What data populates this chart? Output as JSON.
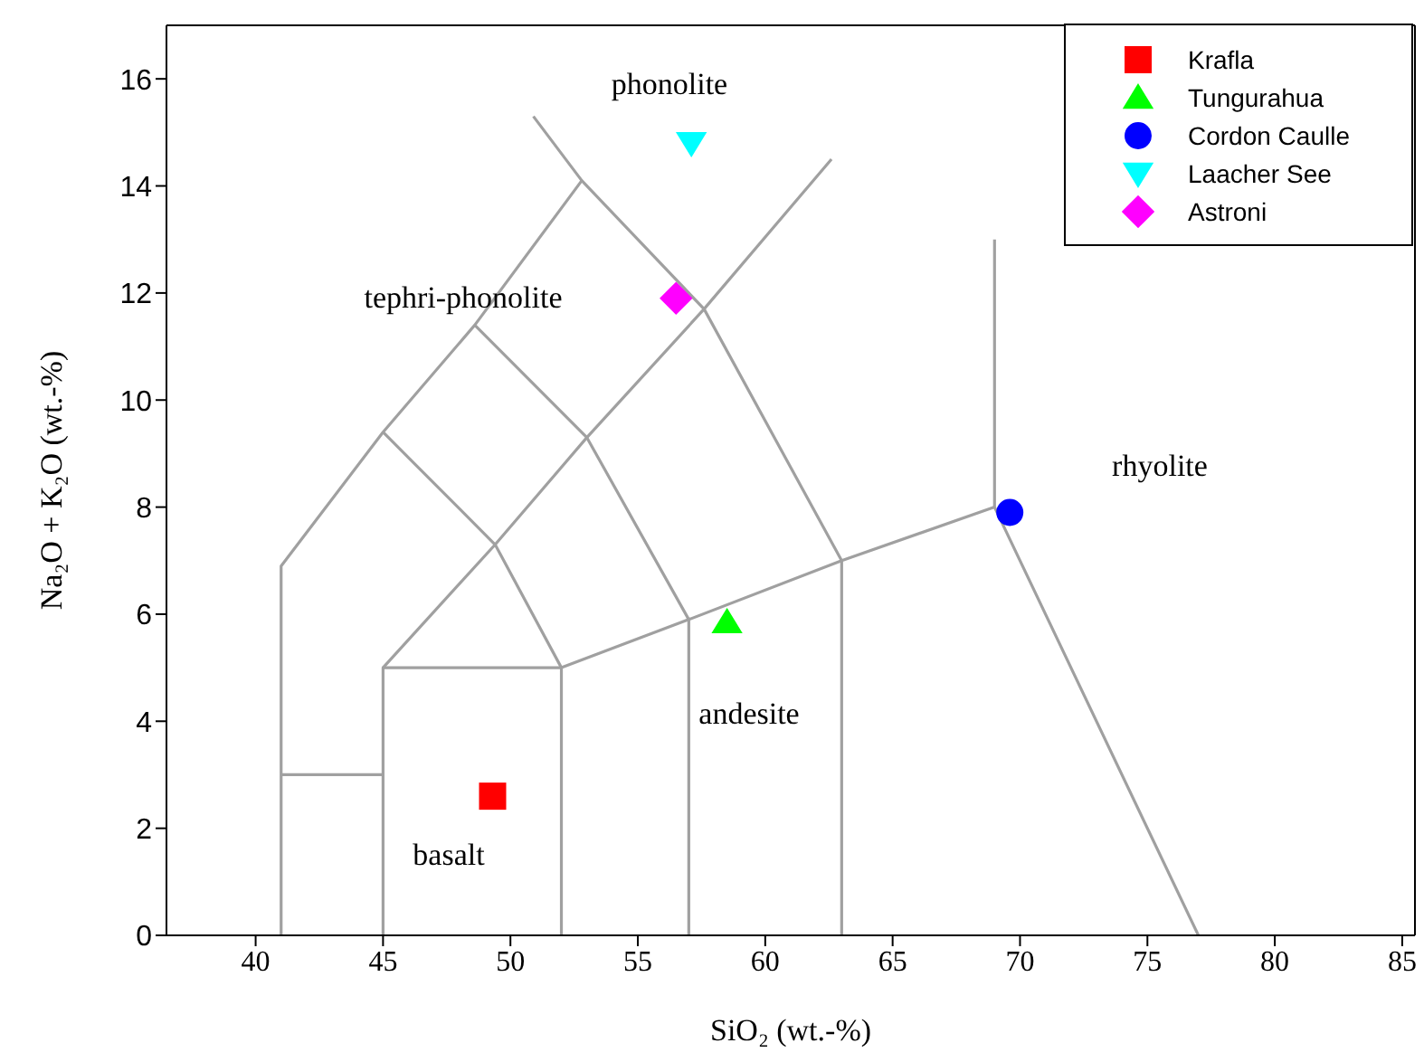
{
  "chart_data": {
    "type": "scatter",
    "xlabel": "SiO₂ (wt.-%)",
    "ylabel": "Na₂O + K₂O (wt.-%)",
    "xlim": [
      36.5,
      85.5
    ],
    "ylim": [
      0,
      17
    ],
    "xticks": [
      40,
      45,
      50,
      55,
      60,
      65,
      70,
      75,
      80,
      85
    ],
    "yticks": [
      0,
      2,
      4,
      6,
      8,
      10,
      12,
      14,
      16
    ],
    "legend": "top right",
    "series": [
      {
        "type": "line",
        "color": "#a0a0a0",
        "x": [
          41,
          41,
          45,
          48.6,
          52.8
        ],
        "values": [
          0,
          6.9,
          9.4,
          11.4,
          14.1
        ]
      },
      {
        "type": "line",
        "color": "#a0a0a0",
        "x": [
          41,
          45
        ],
        "values": [
          3,
          3
        ]
      },
      {
        "type": "line",
        "color": "#a0a0a0",
        "x": [
          45,
          45,
          52,
          52
        ],
        "values": [
          0,
          5,
          5,
          0
        ]
      },
      {
        "type": "line",
        "color": "#a0a0a0",
        "x": [
          45,
          49.4,
          53,
          57.6,
          62.6
        ],
        "values": [
          5,
          7.3,
          9.3,
          11.7,
          14.5
        ]
      },
      {
        "type": "line",
        "color": "#a0a0a0",
        "x": [
          45,
          49.4,
          52
        ],
        "values": [
          9.4,
          7.3,
          5
        ]
      },
      {
        "type": "line",
        "color": "#a0a0a0",
        "x": [
          48.6,
          53,
          57
        ],
        "values": [
          11.4,
          9.3,
          5.9
        ]
      },
      {
        "type": "line",
        "color": "#a0a0a0",
        "x": [
          50.9,
          52.8,
          57.6,
          63
        ],
        "values": [
          15.3,
          14.1,
          11.7,
          7
        ]
      },
      {
        "type": "line",
        "color": "#a0a0a0",
        "x": [
          57,
          57
        ],
        "values": [
          0,
          5.9
        ]
      },
      {
        "type": "line",
        "color": "#a0a0a0",
        "x": [
          63,
          63
        ],
        "values": [
          0,
          7
        ]
      },
      {
        "type": "line",
        "color": "#a0a0a0",
        "x": [
          52,
          57,
          63,
          69
        ],
        "values": [
          5,
          5.9,
          7,
          8
        ]
      },
      {
        "type": "line",
        "color": "#a0a0a0",
        "x": [
          69,
          69,
          77
        ],
        "values": [
          13,
          8,
          0
        ]
      },
      {
        "name": "Krafla",
        "color": "#ff0000",
        "marker": "square",
        "x": [
          49.3
        ],
        "values": [
          2.6
        ]
      },
      {
        "name": "Tungurahua",
        "color": "#00ff00",
        "marker": "triangle",
        "x": [
          58.5
        ],
        "values": [
          5.85
        ]
      },
      {
        "name": "Cordon Caulle",
        "color": "#0000ff",
        "marker": "circle",
        "x": [
          69.6
        ],
        "values": [
          7.9
        ]
      },
      {
        "name": "Laacher See",
        "color": "#00ffff",
        "marker": "triangle-down",
        "x": [
          57.1
        ],
        "values": [
          14.8
        ]
      },
      {
        "name": "Astroni",
        "color": "#ff00ff",
        "marker": "diamond",
        "x": [
          56.5
        ],
        "values": [
          11.9
        ]
      }
    ],
    "annotations": [
      "phonolite",
      "tephri-phonolite",
      "rhyolite",
      "andesite",
      "basalt"
    ]
  }
}
